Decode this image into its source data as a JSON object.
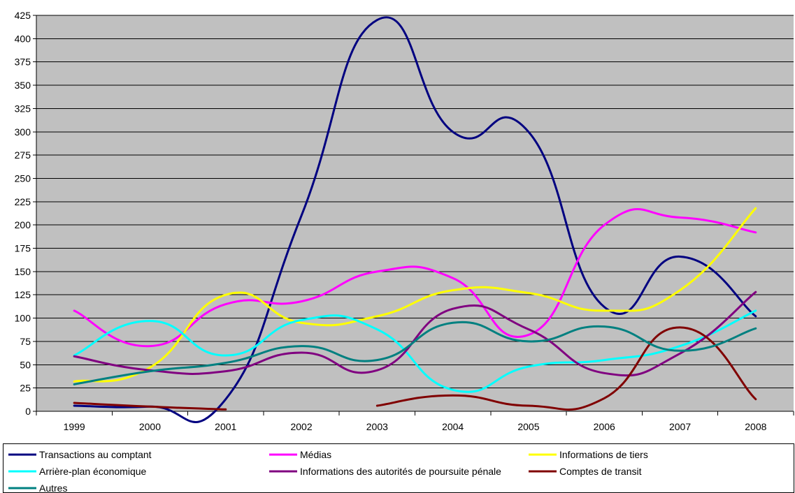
{
  "chart_data": {
    "type": "line",
    "title": "",
    "xlabel": "",
    "ylabel": "",
    "x": [
      "1999",
      "2000",
      "2001",
      "2002",
      "2003",
      "2004",
      "2005",
      "2006",
      "2007",
      "2008"
    ],
    "ylim": [
      0,
      425
    ],
    "yticks": [
      0,
      25,
      50,
      75,
      100,
      125,
      150,
      175,
      200,
      225,
      250,
      275,
      300,
      325,
      350,
      375,
      400,
      425
    ],
    "grid": "horizontal",
    "plot_background": "#C0C0C0",
    "smoothed": true,
    "legend_position": "bottom",
    "series": [
      {
        "name": "Transactions au comptant",
        "color": "#000080",
        "values": [
          6,
          5,
          13,
          210,
          420,
          300,
          300,
          112,
          166,
          102
        ]
      },
      {
        "name": "Médias",
        "color": "#FF00FF",
        "values": [
          108,
          70,
          115,
          118,
          150,
          143,
          82,
          200,
          208,
          192
        ]
      },
      {
        "name": "Informations de tiers",
        "color": "#FFFF00",
        "values": [
          32,
          47,
          125,
          95,
          102,
          130,
          127,
          108,
          130,
          218
        ]
      },
      {
        "name": "Arrière-plan économique",
        "color": "#00FFFF",
        "values": [
          60,
          97,
          60,
          98,
          88,
          23,
          48,
          55,
          70,
          108
        ]
      },
      {
        "name": "Informations des autorités de poursuite pénale",
        "color": "#800080",
        "values": [
          59,
          44,
          43,
          63,
          44,
          110,
          88,
          41,
          62,
          128
        ]
      },
      {
        "name": "Comptes de transit",
        "color": "#800000",
        "values": [
          9,
          5,
          2,
          null,
          6,
          17,
          6,
          14,
          90,
          13
        ]
      },
      {
        "name": "Autres",
        "color": "#008080",
        "values": [
          29,
          43,
          52,
          70,
          55,
          95,
          75,
          91,
          65,
          89
        ]
      }
    ]
  }
}
